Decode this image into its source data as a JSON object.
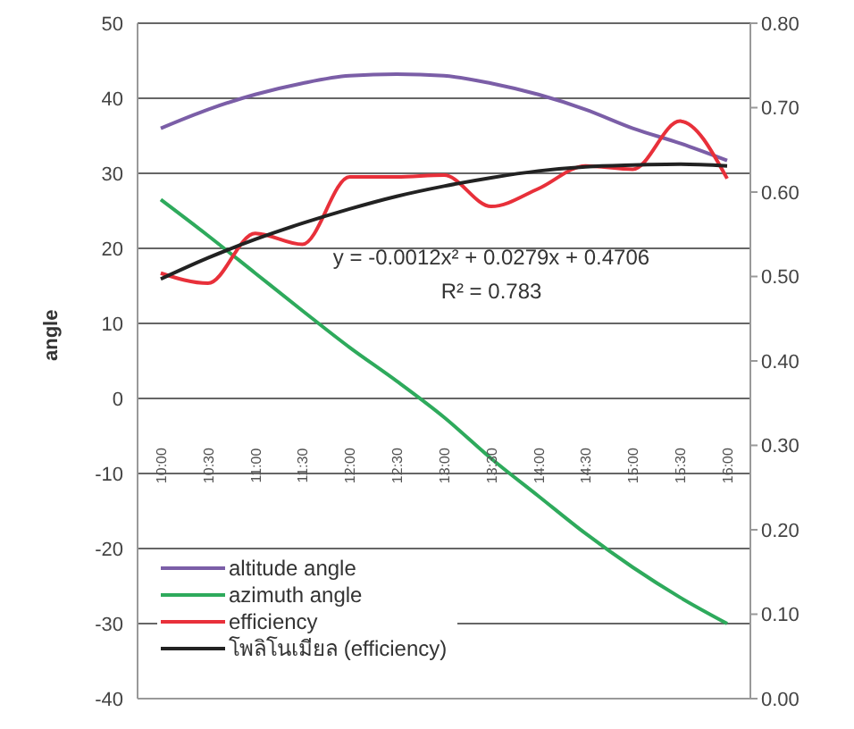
{
  "chart_data": {
    "type": "line",
    "ylabel": "angle",
    "categories": [
      "10:00",
      "10:30",
      "11:00",
      "11:30",
      "12:00",
      "12:30",
      "13:00",
      "13:30",
      "14:00",
      "14:30",
      "15:00",
      "15:30",
      "16:00"
    ],
    "series": [
      {
        "name": "altitude angle",
        "color": "#7b5ea7",
        "values": [
          36,
          38.5,
          40.5,
          42,
          43,
          43.2,
          43,
          42,
          40.5,
          38.5,
          36,
          34,
          31.7
        ]
      },
      {
        "name": "azimuth angle",
        "color": "#2eaa5c",
        "values": [
          26.5,
          21.7,
          16.7,
          11.7,
          6.8,
          2.3,
          -2.5,
          -8,
          -13,
          -18,
          -22.5,
          -26.5,
          -30
        ]
      },
      {
        "name": "efficiency",
        "color": "#e8303a",
        "axis": "y2",
        "values": [
          0.504,
          0.492,
          0.551,
          0.538,
          0.618,
          0.618,
          0.62,
          0.583,
          0.604,
          0.631,
          0.627,
          0.684,
          0.616
        ]
      },
      {
        "name": "โพลิโนเมียล (efficiency)",
        "color": "#222222",
        "axis": "y2",
        "values": [
          0.497,
          0.522,
          0.544,
          0.563,
          0.58,
          0.595,
          0.607,
          0.617,
          0.625,
          0.63,
          0.632,
          0.633,
          0.631
        ]
      }
    ],
    "ylim": [
      -40,
      50
    ],
    "yticks": [
      -40,
      -30,
      -20,
      -10,
      0,
      10,
      20,
      30,
      40,
      50
    ],
    "y2lim": [
      0,
      0.8
    ],
    "y2ticks": [
      {
        "value": 0,
        "label": "0.00"
      },
      {
        "value": 0.1,
        "label": "0.10"
      },
      {
        "value": 0.2,
        "label": "0.20"
      },
      {
        "value": 0.3,
        "label": "0.30"
      },
      {
        "value": 0.4,
        "label": "0.40"
      },
      {
        "value": 0.5,
        "label": "0.50"
      },
      {
        "value": 0.6,
        "label": "0.60"
      },
      {
        "value": 0.7,
        "label": "0.70"
      },
      {
        "value": 0.8,
        "label": "0.80"
      }
    ],
    "annotations": [
      "y = -0.0012x² + 0.0279x + 0.4706",
      "R² = 0.783"
    ],
    "grid": "y",
    "legend": "bottom left",
    "marker": "none",
    "line_style": "solid"
  }
}
